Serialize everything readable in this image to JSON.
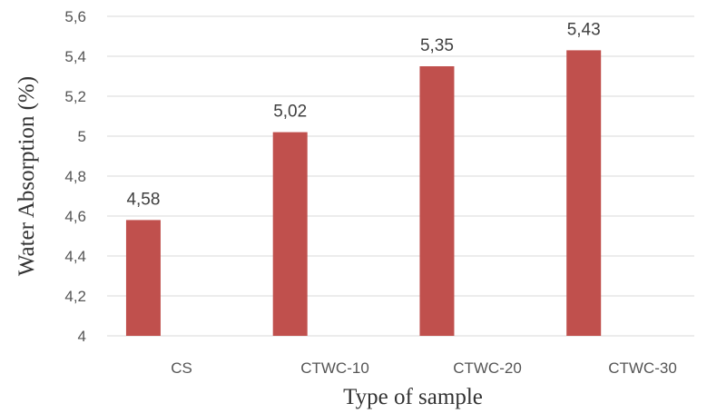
{
  "chart_data": {
    "type": "bar",
    "title": "",
    "xlabel": "Type of sample",
    "ylabel": "Water Absorption (%)",
    "categories": [
      "CS",
      "CTWC-10",
      "CTWC-20",
      "CTWC-30"
    ],
    "values": [
      4.58,
      5.02,
      5.35,
      5.43
    ],
    "value_labels": [
      "4,58",
      "5,02",
      "5,35",
      "5,43"
    ],
    "ylim": [
      4,
      5.6
    ],
    "yticks": [
      4,
      4.2,
      4.4,
      4.6,
      4.8,
      5,
      5.2,
      5.4,
      5.6
    ],
    "ytick_labels": [
      "4",
      "4,2",
      "4,4",
      "4,6",
      "4,8",
      "5",
      "5,2",
      "5,4",
      "5,6"
    ],
    "grid": true,
    "legend": "none",
    "bar_color": "#c0504d"
  }
}
